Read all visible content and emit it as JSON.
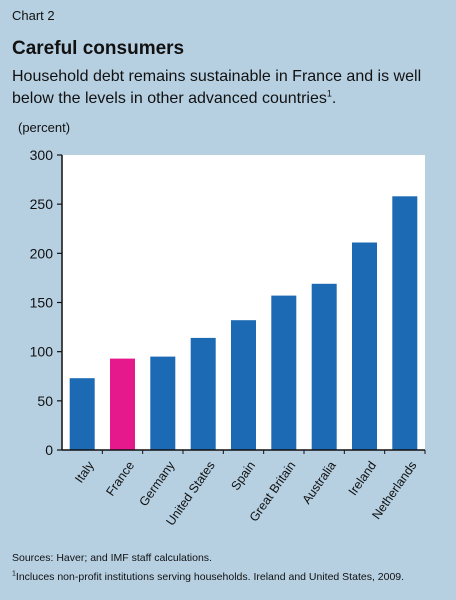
{
  "header": {
    "chart_label": "Chart 2",
    "title": "Careful consumers",
    "subtitle": "Household debt remains sustainable in France and is well below the levels in other advanced countries",
    "subtitle_note_marker": "1",
    "subtitle_end": ".",
    "unit": "(percent)"
  },
  "footer": {
    "sources": "Sources: Haver; and IMF staff calculations.",
    "footnote_marker": "1",
    "footnote": "Incluces non-profit institutions serving households. Ireland and United States, 2009."
  },
  "colors": {
    "bar": "#1c6ab4",
    "highlight": "#e5198b",
    "background": "#b6d0e2",
    "plot_background": "#ffffff"
  },
  "chart_data": {
    "type": "bar",
    "categories": [
      "Italy",
      "France",
      "Germany",
      "United States",
      "Spain",
      "Great Britain",
      "Australia",
      "Ireland",
      "Netherlands"
    ],
    "values": [
      73,
      93,
      95,
      114,
      132,
      157,
      169,
      211,
      258
    ],
    "highlight_category": "France",
    "ylim": [
      0,
      300
    ],
    "yticks": [
      0,
      50,
      100,
      150,
      200,
      250,
      300
    ],
    "ylabel": "(percent)",
    "xlabel": "",
    "grid": false,
    "legend": "none"
  }
}
